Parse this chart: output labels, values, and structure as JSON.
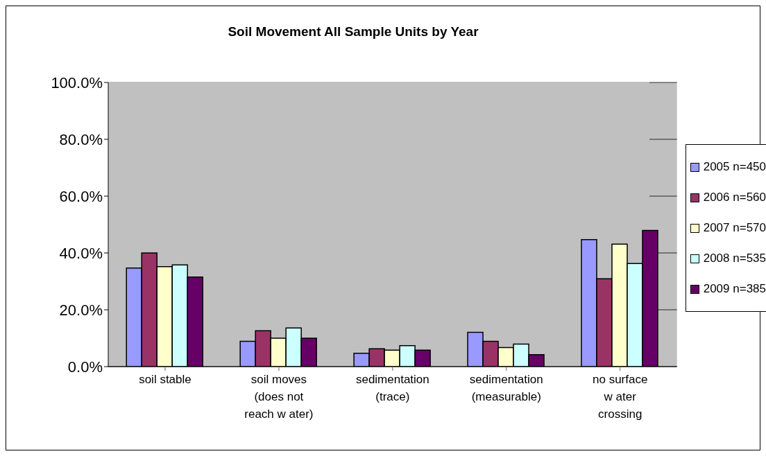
{
  "chart_data": {
    "type": "bar",
    "title": "Soil Movement All Sample Units by Year",
    "categories": [
      "soil stable",
      "soil moves\n(does not\nreach w ater)",
      "sedimentation\n(trace)",
      "sedimentation\n(measurable)",
      "no surface\nw ater\ncrossing"
    ],
    "series": [
      {
        "name": "2005 n=450",
        "color": "#9999ff",
        "values": [
          34.7,
          8.9,
          4.7,
          12.1,
          44.7
        ]
      },
      {
        "name": "2006 n=560",
        "color": "#993366",
        "values": [
          40.0,
          12.6,
          6.3,
          8.9,
          30.9
        ]
      },
      {
        "name": "2007 n=570",
        "color": "#ffffcc",
        "values": [
          35.2,
          10.0,
          5.8,
          6.7,
          43.1
        ]
      },
      {
        "name": "2008 n=535",
        "color": "#ccffff",
        "values": [
          35.8,
          13.6,
          7.4,
          7.9,
          36.3
        ]
      },
      {
        "name": "2009 n=385",
        "color": "#660066",
        "values": [
          31.5,
          10.0,
          5.8,
          4.2,
          47.9
        ]
      }
    ],
    "ylim": [
      0,
      100
    ],
    "yticks": [
      {
        "value": 0,
        "label": "0.0%"
      },
      {
        "value": 20,
        "label": "20.0%"
      },
      {
        "value": 40,
        "label": "40.0%"
      },
      {
        "value": 60,
        "label": "60.0%"
      },
      {
        "value": 80,
        "label": "80.0%"
      },
      {
        "value": 100,
        "label": "100.0%"
      }
    ],
    "grid": "y",
    "legend": "right"
  }
}
